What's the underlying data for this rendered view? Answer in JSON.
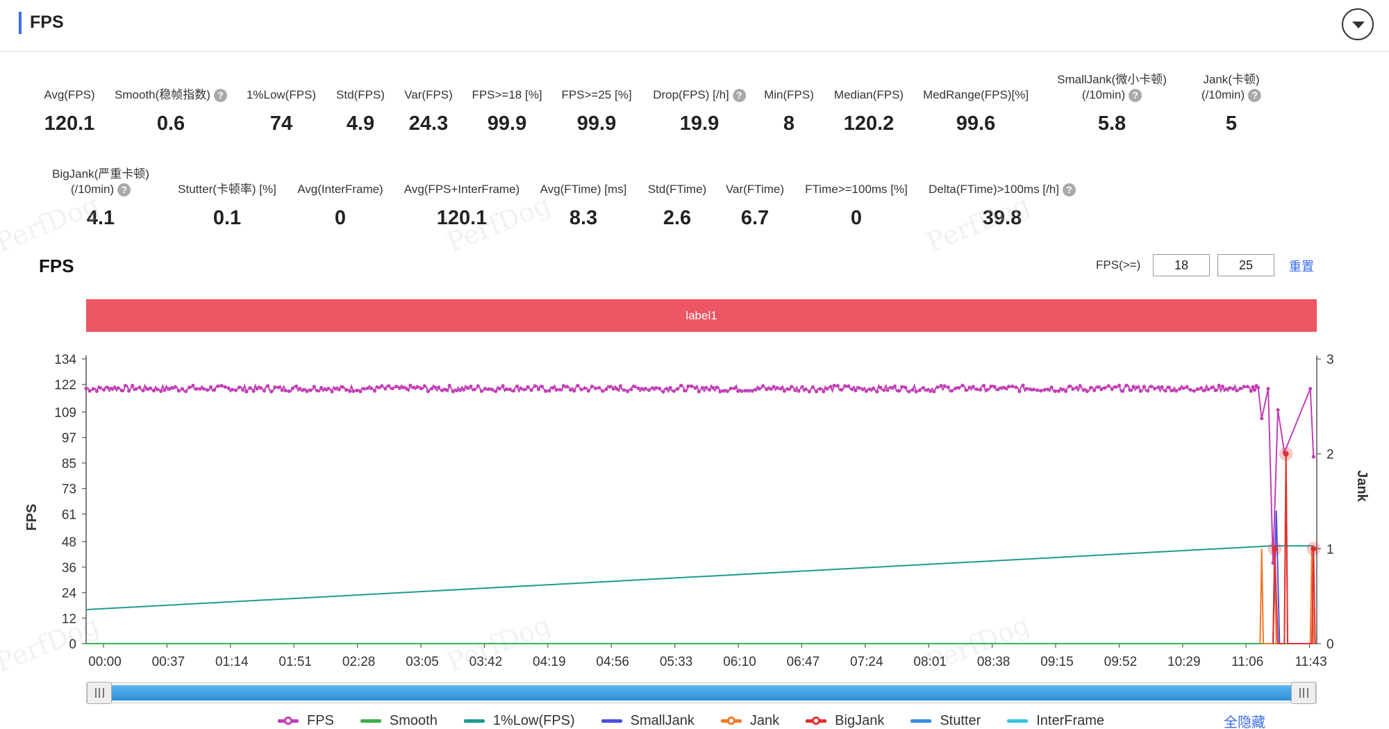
{
  "header": {
    "title": "FPS"
  },
  "stats_row1": [
    {
      "label": [
        "Avg(FPS)"
      ],
      "value": "120.1",
      "help": false
    },
    {
      "label": [
        "Smooth(稳帧指数)"
      ],
      "value": "0.6",
      "help": true
    },
    {
      "label": [
        "1%Low(FPS)"
      ],
      "value": "74",
      "help": false
    },
    {
      "label": [
        "Std(FPS)"
      ],
      "value": "4.9",
      "help": false
    },
    {
      "label": [
        "Var(FPS)"
      ],
      "value": "24.3",
      "help": false
    },
    {
      "label": [
        "FPS>=18 [%]"
      ],
      "value": "99.9",
      "help": false
    },
    {
      "label": [
        "FPS>=25 [%]"
      ],
      "value": "99.9",
      "help": false
    },
    {
      "label": [
        "Drop(FPS) [/h]"
      ],
      "value": "19.9",
      "help": true
    },
    {
      "label": [
        "Min(FPS)"
      ],
      "value": "8",
      "help": false
    },
    {
      "label": [
        "Median(FPS)"
      ],
      "value": "120.2",
      "help": false
    },
    {
      "label": [
        "MedRange(FPS)[%]"
      ],
      "value": "99.6",
      "help": false
    },
    {
      "label": [
        "SmallJank(微小卡顿)",
        "(/10min)"
      ],
      "value": "5.8",
      "help": true
    },
    {
      "label": [
        "Jank(卡顿)",
        "(/10min)"
      ],
      "value": "5",
      "help": true
    }
  ],
  "stats_row2": [
    {
      "label": [
        "BigJank(严重卡顿)",
        "(/10min)"
      ],
      "value": "4.1",
      "help": true
    },
    {
      "label": [
        "Stutter(卡顿率) [%]"
      ],
      "value": "0.1",
      "help": false
    },
    {
      "label": [
        "Avg(InterFrame)"
      ],
      "value": "0",
      "help": false
    },
    {
      "label": [
        "Avg(FPS+InterFrame)"
      ],
      "value": "120.1",
      "help": false
    },
    {
      "label": [
        "Avg(FTime) [ms]"
      ],
      "value": "8.3",
      "help": false
    },
    {
      "label": [
        "Std(FTime)"
      ],
      "value": "2.6",
      "help": false
    },
    {
      "label": [
        "Var(FTime)"
      ],
      "value": "6.7",
      "help": false
    },
    {
      "label": [
        "FTime>=100ms [%]"
      ],
      "value": "0",
      "help": false
    },
    {
      "label": [
        "Delta(FTime)>100ms [/h]"
      ],
      "value": "39.8",
      "help": true
    }
  ],
  "watermark_text": "PerfDog",
  "chart_header": {
    "title": "FPS",
    "threshold_label": "FPS(>=)",
    "threshold_1": "18",
    "threshold_2": "25",
    "reset_label": "重置"
  },
  "label_band": "label1",
  "chart_data": {
    "type": "line",
    "x_ticks": [
      "00:00",
      "00:37",
      "01:14",
      "01:51",
      "02:28",
      "03:05",
      "03:42",
      "04:19",
      "04:56",
      "05:33",
      "06:10",
      "06:47",
      "07:24",
      "08:01",
      "08:38",
      "09:15",
      "09:52",
      "10:29",
      "11:06",
      "11:43"
    ],
    "x_range_seconds": [
      0,
      745
    ],
    "y_left": {
      "label": "FPS",
      "ticks": [
        0,
        12,
        24,
        36,
        48,
        61,
        73,
        85,
        97,
        109,
        122,
        134
      ],
      "range": [
        0,
        134
      ]
    },
    "y_right": {
      "label": "Jank",
      "ticks": [
        0,
        1,
        2,
        3
      ],
      "range": [
        0,
        3
      ]
    },
    "series": [
      {
        "name": "FPS",
        "color": "#c23fb5",
        "axis": "left",
        "baseline": 120.1,
        "dips": [
          [
            726,
            106
          ],
          [
            730,
            120
          ],
          [
            733,
            38
          ],
          [
            736,
            110
          ],
          [
            740,
            90
          ],
          [
            756,
            120
          ],
          [
            758,
            88
          ]
        ]
      },
      {
        "name": "Smooth",
        "color": "#3cae4a",
        "axis": "right",
        "points": [
          [
            0,
            0
          ],
          [
            745,
            0
          ]
        ]
      },
      {
        "name": "1%Low(FPS)",
        "color": "#1e9b8f",
        "axis": "left",
        "points": [
          [
            0,
            16
          ],
          [
            732,
            46
          ],
          [
            758,
            46
          ]
        ]
      },
      {
        "name": "SmallJank",
        "color": "#4a4fe0",
        "axis": "right",
        "points": [
          [
            733,
            0
          ],
          [
            735,
            1.4
          ],
          [
            737,
            0
          ]
        ]
      },
      {
        "name": "Jank",
        "color": "#f07a2a",
        "axis": "right",
        "points": [
          [
            725,
            0
          ],
          [
            726,
            1
          ],
          [
            727,
            0
          ],
          [
            733,
            0
          ],
          [
            734,
            1
          ],
          [
            735,
            0
          ],
          [
            740,
            0
          ],
          [
            741,
            2
          ],
          [
            742,
            0
          ],
          [
            756,
            0
          ],
          [
            757,
            1
          ],
          [
            758,
            0
          ]
        ]
      },
      {
        "name": "BigJank",
        "color": "#e03030",
        "axis": "right",
        "points": [
          [
            733,
            0
          ],
          [
            734,
            1
          ],
          [
            736,
            0
          ],
          [
            740,
            0
          ],
          [
            741,
            2
          ],
          [
            742,
            0
          ],
          [
            757,
            0
          ],
          [
            758,
            1
          ],
          [
            759,
            0
          ]
        ]
      },
      {
        "name": "Stutter",
        "color": "#3a8be8",
        "axis": "right",
        "points": [
          [
            0,
            0
          ],
          [
            745,
            0
          ]
        ]
      },
      {
        "name": "InterFrame",
        "color": "#35c5e0",
        "axis": "right",
        "points": [
          [
            0,
            0
          ],
          [
            745,
            0
          ]
        ]
      }
    ],
    "bigjank_markers": [
      [
        734,
        1
      ],
      [
        741,
        2
      ],
      [
        758,
        1
      ]
    ]
  },
  "legend": [
    {
      "name": "FPS",
      "color": "#c23fb5",
      "dot": true
    },
    {
      "name": "Smooth",
      "color": "#3cae4a",
      "dot": false
    },
    {
      "name": "1%Low(FPS)",
      "color": "#1e9b8f",
      "dot": false
    },
    {
      "name": "SmallJank",
      "color": "#4a4fe0",
      "dot": false
    },
    {
      "name": "Jank",
      "color": "#f07a2a",
      "dot": true
    },
    {
      "name": "BigJank",
      "color": "#e03030",
      "dot": true
    },
    {
      "name": "Stutter",
      "color": "#3a8be8",
      "dot": false
    },
    {
      "name": "InterFrame",
      "color": "#35c5e0",
      "dot": false
    }
  ],
  "hide_all_label": "全隐藏"
}
